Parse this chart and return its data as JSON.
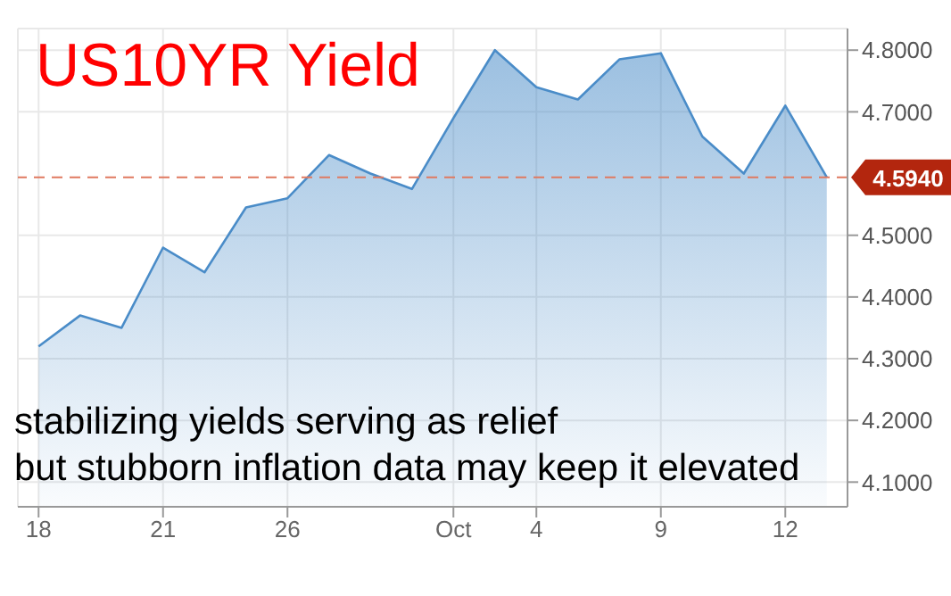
{
  "chart_data": {
    "type": "area",
    "title": "US10YR Yield",
    "categories": [
      "18",
      null,
      null,
      "21",
      null,
      null,
      "26",
      null,
      null,
      null,
      "Oct",
      null,
      "4",
      null,
      null,
      "9",
      null,
      null,
      "12",
      null
    ],
    "series": [
      {
        "color": "#4a8cc8",
        "values": [
          4.32,
          4.37,
          4.35,
          4.48,
          4.44,
          4.545,
          4.56,
          4.63,
          4.6,
          4.575,
          4.69,
          4.8,
          4.74,
          4.72,
          4.785,
          4.795,
          4.66,
          4.6,
          4.71,
          4.594
        ]
      }
    ],
    "ylim": [
      4.06,
      4.835
    ],
    "yticks": [
      {
        "value": 4.1,
        "label": "4.1000"
      },
      {
        "value": 4.2,
        "label": "4.2000"
      },
      {
        "value": 4.3,
        "label": "4.3000"
      },
      {
        "value": 4.4,
        "label": "4.4000"
      },
      {
        "value": 4.5,
        "label": "4.5000"
      },
      {
        "value": 4.7,
        "label": "4.7000"
      },
      {
        "value": 4.8,
        "label": "4.8000"
      }
    ],
    "ref_lines": [
      {
        "axis": "y",
        "value": 4.594,
        "label": "4.5940",
        "color": "#e07a60",
        "line_style": "dashed"
      }
    ],
    "annotations": [
      "stabilizing yields serving as relief",
      "but stubborn inflation data may keep it elevated"
    ],
    "grid": true
  }
}
